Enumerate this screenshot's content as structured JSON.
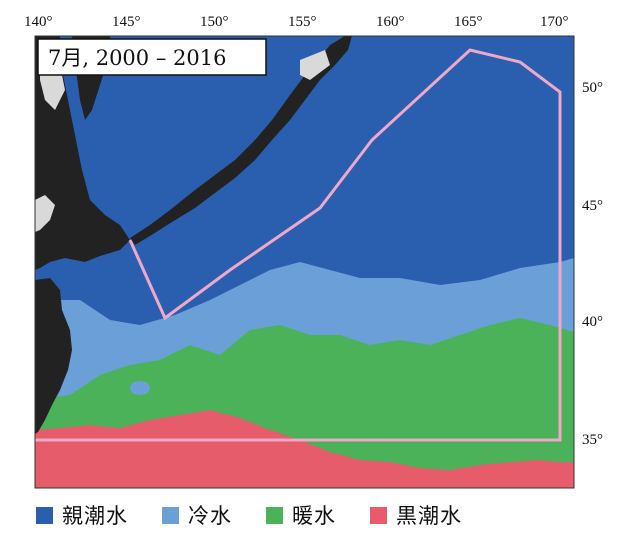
{
  "title": "7月, 2000 – 2016",
  "axes": {
    "lon_ticks": [
      "140°",
      "145°",
      "150°",
      "155°",
      "160°",
      "165°",
      "170°"
    ],
    "lat_ticks": [
      "50°",
      "45°",
      "40°",
      "35°"
    ]
  },
  "colors": {
    "oyashio": "#2a5fb0",
    "cold": "#6a9fd8",
    "warm": "#4cb25a",
    "kuroshio": "#e65c6a",
    "land": "#222222",
    "ice_coast": "#d9d9d9",
    "region_outline": "#f0a8c8"
  },
  "legend": [
    {
      "label": "親潮水",
      "color": "#2a5fb0"
    },
    {
      "label": "冷水",
      "color": "#6a9fd8"
    },
    {
      "label": "暖水",
      "color": "#4cb25a"
    },
    {
      "label": "黒潮水",
      "color": "#e65c6a"
    }
  ]
}
